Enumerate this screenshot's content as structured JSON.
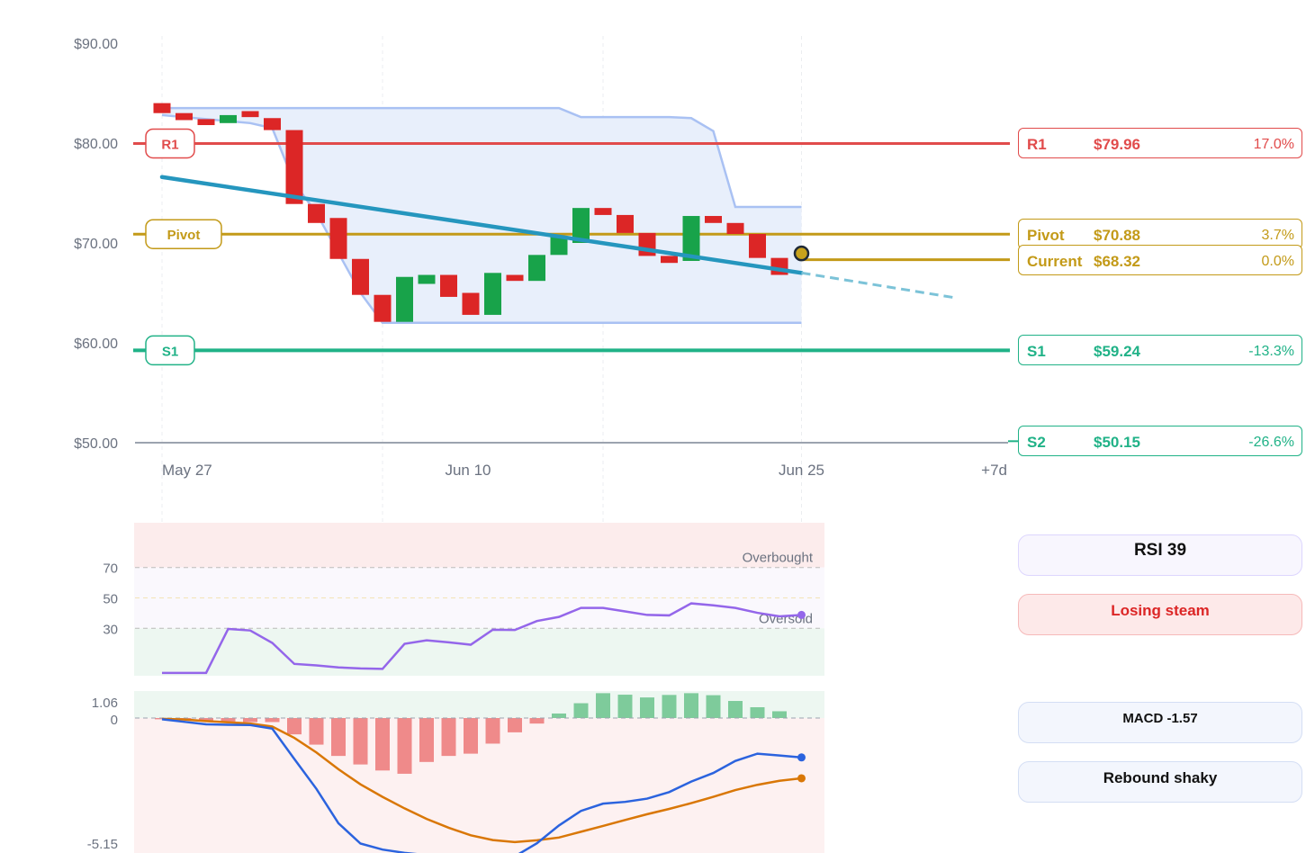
{
  "chart_data": [
    {
      "type": "candlestick",
      "title": "",
      "y_ticks": [
        "$90.00",
        "$80.00",
        "$70.00",
        "$60.00",
        "$50.00"
      ],
      "ylim": [
        50,
        90
      ],
      "x_labels": [
        {
          "date": "2024-05-27",
          "label": "May 27"
        },
        {
          "date": "2024-06-10",
          "label": "Jun 10"
        },
        {
          "date": "2024-06-25",
          "label": "Jun 25"
        },
        {
          "date": "2024-07-02",
          "label": "+7d"
        }
      ],
      "candles": [
        {
          "date": "2024-05-27",
          "open": 84.0,
          "close": 83.0
        },
        {
          "date": "2024-05-28",
          "open": 83.0,
          "close": 82.3
        },
        {
          "date": "2024-05-29",
          "open": 82.4,
          "close": 81.8
        },
        {
          "date": "2024-05-30",
          "open": 82.0,
          "close": 82.8
        },
        {
          "date": "2024-05-31",
          "open": 83.2,
          "close": 82.6
        },
        {
          "date": "2024-06-01",
          "open": 82.5,
          "close": 81.3
        },
        {
          "date": "2024-06-02",
          "open": 81.3,
          "close": 73.9
        },
        {
          "date": "2024-06-03",
          "open": 73.9,
          "close": 72.0
        },
        {
          "date": "2024-06-04",
          "open": 72.5,
          "close": 68.4
        },
        {
          "date": "2024-06-05",
          "open": 68.4,
          "close": 64.8
        },
        {
          "date": "2024-06-06",
          "open": 64.8,
          "close": 62.1
        },
        {
          "date": "2024-06-07",
          "open": 62.1,
          "close": 66.6
        },
        {
          "date": "2024-06-08",
          "open": 65.9,
          "close": 66.8
        },
        {
          "date": "2024-06-09",
          "open": 66.8,
          "close": 64.6
        },
        {
          "date": "2024-06-10",
          "open": 65.0,
          "close": 62.8
        },
        {
          "date": "2024-06-11",
          "open": 62.8,
          "close": 67.0
        },
        {
          "date": "2024-06-12",
          "open": 66.8,
          "close": 66.2
        },
        {
          "date": "2024-06-13",
          "open": 66.2,
          "close": 68.8
        },
        {
          "date": "2024-06-14",
          "open": 68.8,
          "close": 70.6
        },
        {
          "date": "2024-06-15",
          "open": 70.0,
          "close": 73.5
        },
        {
          "date": "2024-06-16",
          "open": 73.5,
          "close": 72.8
        },
        {
          "date": "2024-06-17",
          "open": 72.8,
          "close": 71.0
        },
        {
          "date": "2024-06-18",
          "open": 71.0,
          "close": 68.7
        },
        {
          "date": "2024-06-19",
          "open": 68.7,
          "close": 68.0
        },
        {
          "date": "2024-06-20",
          "open": 68.2,
          "close": 72.7
        },
        {
          "date": "2024-06-21",
          "open": 72.7,
          "close": 72.0
        },
        {
          "date": "2024-06-22",
          "open": 72.0,
          "close": 70.9
        },
        {
          "date": "2024-06-23",
          "open": 70.9,
          "close": 68.5
        },
        {
          "date": "2024-06-24",
          "open": 68.5,
          "close": 66.8
        }
      ],
      "current_marker": {
        "date": "2024-06-25",
        "value": 68.32
      },
      "band_upper": [
        {
          "date": "2024-05-27",
          "value": 83.5
        },
        {
          "date": "2024-06-14",
          "value": 83.5
        },
        {
          "date": "2024-06-15",
          "value": 82.6
        },
        {
          "date": "2024-06-19",
          "value": 82.6
        },
        {
          "date": "2024-06-20",
          "value": 82.5
        },
        {
          "date": "2024-06-21",
          "value": 81.2
        },
        {
          "date": "2024-06-22",
          "value": 73.6
        },
        {
          "date": "2024-06-25",
          "value": 73.6
        }
      ],
      "band_lower": [
        {
          "date": "2024-05-27",
          "value": 82.8
        },
        {
          "date": "2024-05-31",
          "value": 82.0
        },
        {
          "date": "2024-06-01",
          "value": 81.5
        },
        {
          "date": "2024-06-02",
          "value": 76.0
        },
        {
          "date": "2024-06-03",
          "value": 73.0
        },
        {
          "date": "2024-06-04",
          "value": 69.0
        },
        {
          "date": "2024-06-05",
          "value": 65.0
        },
        {
          "date": "2024-06-06",
          "value": 62.0
        },
        {
          "date": "2024-06-25",
          "value": 62.0
        }
      ],
      "trendline": {
        "start": {
          "date": "2024-05-27",
          "value": 76.6
        },
        "end": {
          "date": "2024-06-25",
          "value": 67.0
        }
      },
      "forecast": {
        "start": {
          "date": "2024-06-25",
          "value": 67.0
        },
        "end": {
          "date": "2024-07-02",
          "value": 64.5
        }
      },
      "levels": [
        {
          "name": "R1",
          "price": "$79.96",
          "pct": "17.0%",
          "value": 79.96,
          "color": "#e14b4b",
          "tag": true
        },
        {
          "name": "Pivot",
          "price": "$70.88",
          "pct": "3.7%",
          "value": 70.88,
          "color": "#c39a18",
          "tag": true
        },
        {
          "name": "Current",
          "price": "$68.32",
          "pct": "0.0%",
          "value": 68.32,
          "color": "#c39a18",
          "tag": false
        },
        {
          "name": "S1",
          "price": "$59.24",
          "pct": "-13.3%",
          "value": 59.24,
          "color": "#20b287",
          "tag": true
        },
        {
          "name": "S2",
          "price": "$50.15",
          "pct": "-26.6%",
          "value": 50.15,
          "color": "#20b287",
          "tag": false
        }
      ],
      "colors": {
        "up": "#18a34a",
        "down": "#dc2626",
        "band": "#a9c1f3",
        "trend": "#2596be"
      }
    },
    {
      "type": "line",
      "name": "RSI",
      "y_ticks": [
        "70",
        "50",
        "30"
      ],
      "ylim": [
        0,
        100
      ],
      "zone_labels": {
        "overbought": "Overbought",
        "oversold": "Oversold"
      },
      "x": [
        "2024-05-27",
        "2024-05-28",
        "2024-05-29",
        "2024-05-30",
        "2024-05-31",
        "2024-06-01",
        "2024-06-02",
        "2024-06-03",
        "2024-06-04",
        "2024-06-05",
        "2024-06-06",
        "2024-06-07",
        "2024-06-08",
        "2024-06-09",
        "2024-06-10",
        "2024-06-11",
        "2024-06-12",
        "2024-06-13",
        "2024-06-14",
        "2024-06-15",
        "2024-06-16",
        "2024-06-17",
        "2024-06-18",
        "2024-06-19",
        "2024-06-20",
        "2024-06-21",
        "2024-06-22",
        "2024-06-23",
        "2024-06-24",
        "2024-06-25"
      ],
      "values": [
        0.7,
        0.7,
        0.7,
        29.6,
        28.6,
        20.4,
        6.6,
        5.6,
        4.3,
        3.6,
        3.3,
        19.8,
        22.1,
        20.8,
        19.2,
        29.1,
        28.9,
        34.8,
        37.5,
        43.4,
        43.4,
        41.1,
        38.8,
        38.5,
        46.4,
        45.1,
        43.4,
        40.2,
        37.9,
        38.8
      ],
      "color": "#9466ea"
    },
    {
      "type": "line",
      "name": "MACD",
      "y_ticks": [
        "1.06",
        "0",
        "-5.15"
      ],
      "ylim": [
        -5.15,
        1.06
      ],
      "x": [
        "2024-05-27",
        "2024-05-28",
        "2024-05-29",
        "2024-05-30",
        "2024-05-31",
        "2024-06-01",
        "2024-06-02",
        "2024-06-03",
        "2024-06-04",
        "2024-06-05",
        "2024-06-06",
        "2024-06-07",
        "2024-06-08",
        "2024-06-09",
        "2024-06-10",
        "2024-06-11",
        "2024-06-12",
        "2024-06-13",
        "2024-06-14",
        "2024-06-15",
        "2024-06-16",
        "2024-06-17",
        "2024-06-18",
        "2024-06-19",
        "2024-06-20",
        "2024-06-21",
        "2024-06-22",
        "2024-06-23",
        "2024-06-24",
        "2024-06-25"
      ],
      "macd": [
        -0.05,
        -0.15,
        -0.25,
        -0.27,
        -0.28,
        -0.42,
        -1.63,
        -2.82,
        -4.19,
        -5.0,
        -5.24,
        -5.37,
        -5.46,
        -5.61,
        -5.84,
        -5.72,
        -5.51,
        -4.99,
        -4.28,
        -3.7,
        -3.41,
        -3.34,
        -3.21,
        -2.95,
        -2.53,
        -2.19,
        -1.71,
        -1.42,
        -1.49,
        -1.57
      ],
      "signal": [
        -0.03,
        -0.06,
        -0.12,
        -0.17,
        -0.22,
        -0.34,
        -0.79,
        -1.37,
        -2.04,
        -2.64,
        -3.14,
        -3.6,
        -4.02,
        -4.37,
        -4.67,
        -4.86,
        -4.94,
        -4.87,
        -4.76,
        -4.53,
        -4.3,
        -4.06,
        -3.83,
        -3.62,
        -3.39,
        -3.14,
        -2.87,
        -2.66,
        -2.5,
        -2.4
      ],
      "histogram": [
        -0.05,
        -0.09,
        -0.13,
        -0.14,
        -0.16,
        -0.16,
        -0.65,
        -1.06,
        -1.51,
        -1.85,
        -2.09,
        -2.22,
        -1.75,
        -1.51,
        -1.42,
        -1.02,
        -0.57,
        -0.22,
        0.18,
        0.59,
        0.99,
        0.93,
        0.82,
        0.92,
        0.99,
        0.91,
        0.68,
        0.43,
        0.27
      ],
      "colors": {
        "macd": "#2b63de",
        "signal": "#d97706",
        "pos": "#7ecb9b",
        "neg": "#ef8a8a"
      }
    }
  ],
  "indicators": {
    "rsi_label": "RSI 39",
    "rsi_status": "Losing steam",
    "macd_label": "MACD -1.57",
    "macd_status": "Rebound shaky"
  }
}
